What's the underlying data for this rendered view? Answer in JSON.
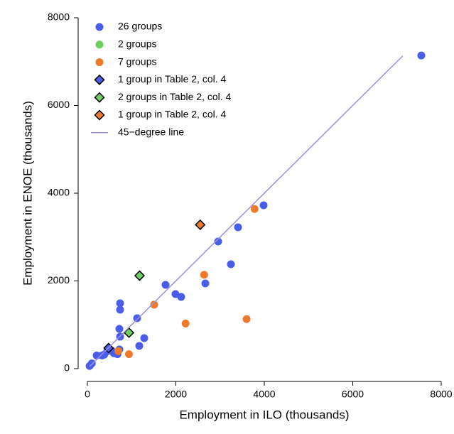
{
  "chart_data": {
    "type": "scatter",
    "x_label": "Employment in ILO (thousands)",
    "y_label": "Employment in ENOE (thousands)",
    "xlim": [
      0,
      8000
    ],
    "ylim": [
      0,
      8000
    ],
    "xticks": [
      0,
      2000,
      4000,
      6000,
      8000
    ],
    "yticks": [
      0,
      2000,
      4000,
      6000,
      8000
    ],
    "series": [
      {
        "name": "26 groups",
        "color": "#4a5de8",
        "marker": "circle",
        "x": [
          7550,
          3984,
          3406,
          2956,
          3245,
          2667,
          1767,
          1992,
          2120,
          1124,
          739,
          739,
          723,
          739,
          1285,
          1173,
          723,
          600,
          680,
          560,
          330,
          210,
          380,
          100,
          50,
          450
        ],
        "values": [
          7140,
          3725,
          3223,
          2899,
          2381,
          1943,
          1911,
          1700,
          1636,
          1150,
          1490,
          1344,
          907,
          729,
          696,
          518,
          437,
          350,
          330,
          400,
          300,
          300,
          320,
          120,
          60,
          400
        ]
      },
      {
        "name": "2 groups",
        "color": "#6fcf62",
        "marker": "circle",
        "x": [
          1180,
          940
        ],
        "values": [
          2120,
          820
        ]
      },
      {
        "name": "7 groups",
        "color": "#ee7a2c",
        "marker": "circle",
        "x": [
          3780,
          2640,
          1510,
          3600,
          2220,
          940,
          700
        ],
        "values": [
          3640,
          2140,
          1460,
          1130,
          1030,
          330,
          400
        ]
      },
      {
        "name": "1 group in Table 2, col. 4",
        "color": "#4a5de8",
        "marker": "diamond",
        "x": [
          480
        ],
        "values": [
          470
        ]
      },
      {
        "name": "2 groups in Table 2, col. 4",
        "color": "#6fcf62",
        "marker": "diamond",
        "x": [
          1180,
          940
        ],
        "values": [
          2120,
          820
        ]
      },
      {
        "name": "1 group in Table 2, col. 4",
        "color": "#ee7a2c",
        "marker": "diamond",
        "x": [
          2550
        ],
        "values": [
          3280
        ]
      },
      {
        "name": "45−degree line",
        "color": "#9b92d8",
        "marker": "line",
        "x": [
          50,
          7130
        ],
        "values": [
          50,
          7130
        ]
      }
    ]
  }
}
